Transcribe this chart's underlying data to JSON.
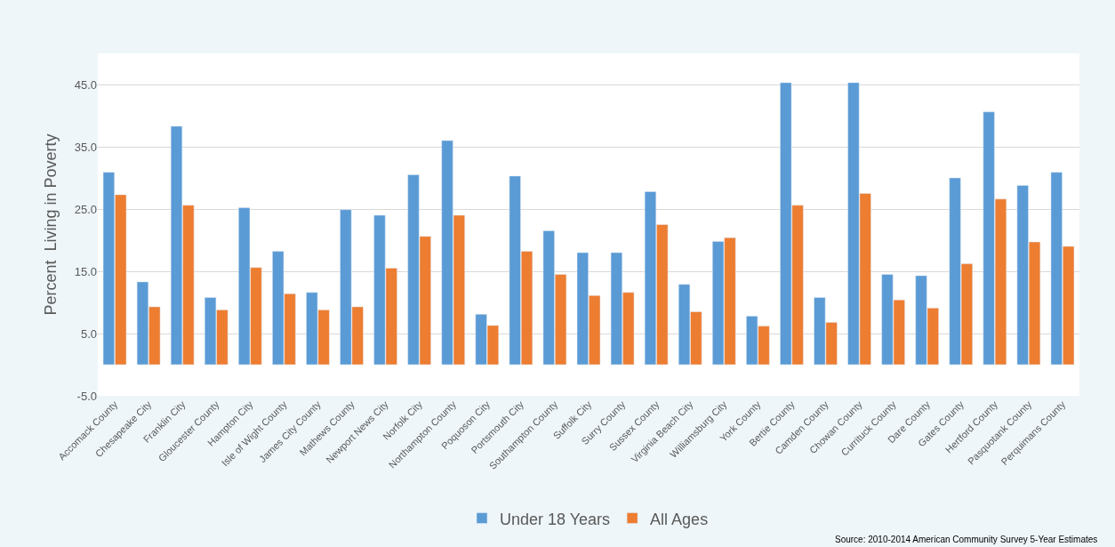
{
  "chart_data": {
    "type": "bar",
    "ylabel": "Percent  Living in Poverty",
    "categories": [
      "Accomack County",
      "Chesapeake City",
      "Franklin City",
      "Gloucester County",
      "Hampton City",
      "Isle of Wight County",
      "James City County",
      "Mathews County",
      "Newport News City",
      "Norfolk City",
      "Northampton County",
      "Poquoson City",
      "Portsmouth City",
      "Southampton County",
      "Suffolk City",
      "Surry County",
      "Sussex County",
      "Virginia Beach City",
      "Williamsburg City",
      "York County",
      "Bertie County",
      "Camden County",
      "Chowan County",
      "Currituck County",
      "Dare County",
      "Gates County",
      "Hertford County",
      "Pasquotank County",
      "Perquimans County"
    ],
    "series": [
      {
        "name": "Under 18 Years",
        "color": "#5b9bd5",
        "values": [
          30.9,
          13.3,
          38.3,
          10.8,
          25.2,
          18.2,
          11.6,
          24.9,
          24.0,
          30.5,
          36.0,
          8.1,
          30.3,
          21.5,
          18.0,
          18.0,
          27.8,
          12.9,
          19.8,
          7.8,
          45.3,
          10.8,
          45.3,
          14.5,
          14.3,
          30.0,
          40.6,
          28.8,
          30.9
        ]
      },
      {
        "name": "All Ages",
        "color": "#ed7d31",
        "values": [
          27.3,
          9.3,
          25.6,
          8.8,
          15.6,
          11.4,
          8.8,
          9.3,
          15.5,
          20.6,
          24.0,
          6.3,
          18.2,
          14.5,
          11.1,
          11.6,
          22.5,
          8.5,
          20.4,
          6.2,
          25.6,
          6.8,
          27.5,
          10.4,
          9.1,
          16.2,
          26.6,
          19.7,
          19.0
        ]
      }
    ],
    "ylim": [
      -5,
      50
    ],
    "yticks": [
      {
        "value": -5,
        "label": "-5.0"
      },
      {
        "value": 5,
        "label": "5.0"
      },
      {
        "value": 15,
        "label": "15.0"
      },
      {
        "value": 25,
        "label": "25.0"
      },
      {
        "value": 35,
        "label": "35.0"
      },
      {
        "value": 45,
        "label": "45.0"
      }
    ],
    "grid": "y",
    "legend": "bottom",
    "annotations": [
      "Source: 2010-2014 American Community Survey 5-Year Estimates"
    ]
  }
}
